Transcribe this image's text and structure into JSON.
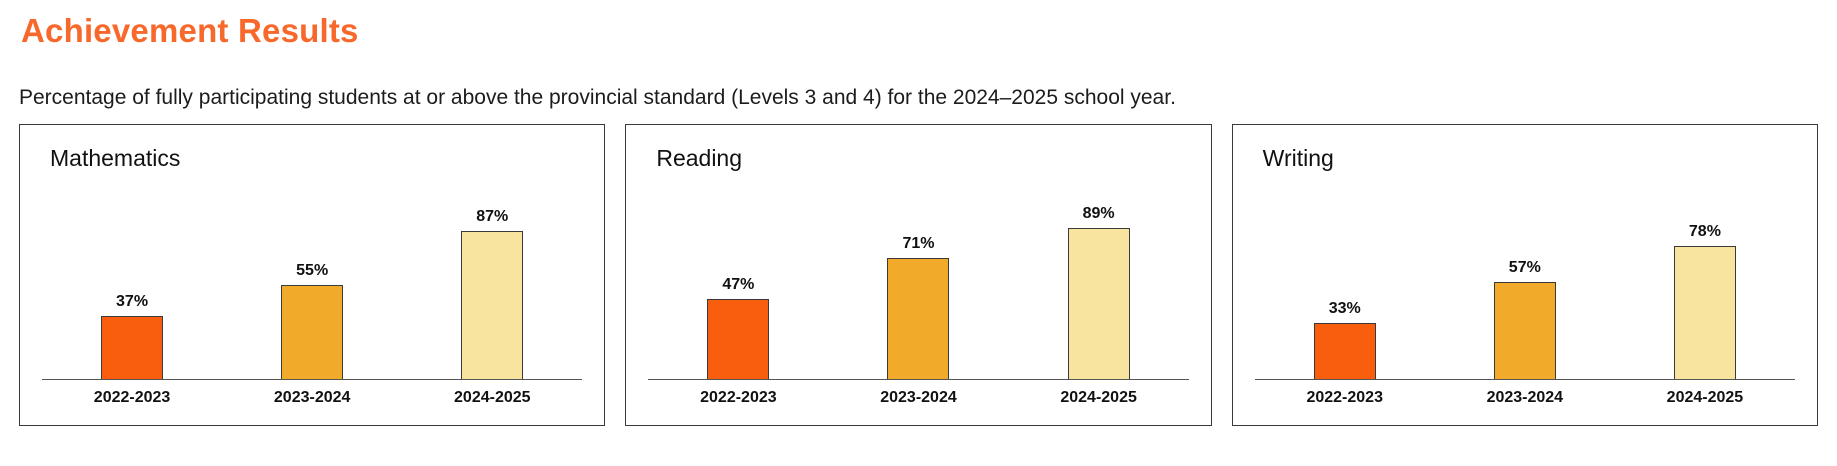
{
  "page": {
    "title": "Achievement Results",
    "subtitle": "Percentage of fully participating students at or above the provincial standard (Levels 3 and 4) for the 2024–2025 school year."
  },
  "colors": {
    "accent": "#F8682B",
    "bar_colors": [
      "#F95E0F",
      "#F1AA29",
      "#F8E49E"
    ],
    "bar_border": "#3A3A3A",
    "panel_border": "#3A3A3A",
    "axis_line": "#555555",
    "background": "#FFFFFF"
  },
  "chart_data": [
    {
      "type": "bar",
      "title": "Mathematics",
      "categories": [
        "2022-2023",
        "2023-2024",
        "2024-2025"
      ],
      "values": [
        37,
        55,
        87
      ],
      "unit": "%",
      "ylim": [
        0,
        100
      ],
      "grid": false,
      "legend": "none",
      "xlabel": "",
      "ylabel": ""
    },
    {
      "type": "bar",
      "title": "Reading",
      "categories": [
        "2022-2023",
        "2023-2024",
        "2024-2025"
      ],
      "values": [
        47,
        71,
        89
      ],
      "unit": "%",
      "ylim": [
        0,
        100
      ],
      "grid": false,
      "legend": "none",
      "xlabel": "",
      "ylabel": ""
    },
    {
      "type": "bar",
      "title": "Writing",
      "categories": [
        "2022-2023",
        "2023-2024",
        "2024-2025"
      ],
      "values": [
        33,
        57,
        78
      ],
      "unit": "%",
      "ylim": [
        0,
        100
      ],
      "grid": false,
      "legend": "none",
      "xlabel": "",
      "ylabel": ""
    }
  ]
}
